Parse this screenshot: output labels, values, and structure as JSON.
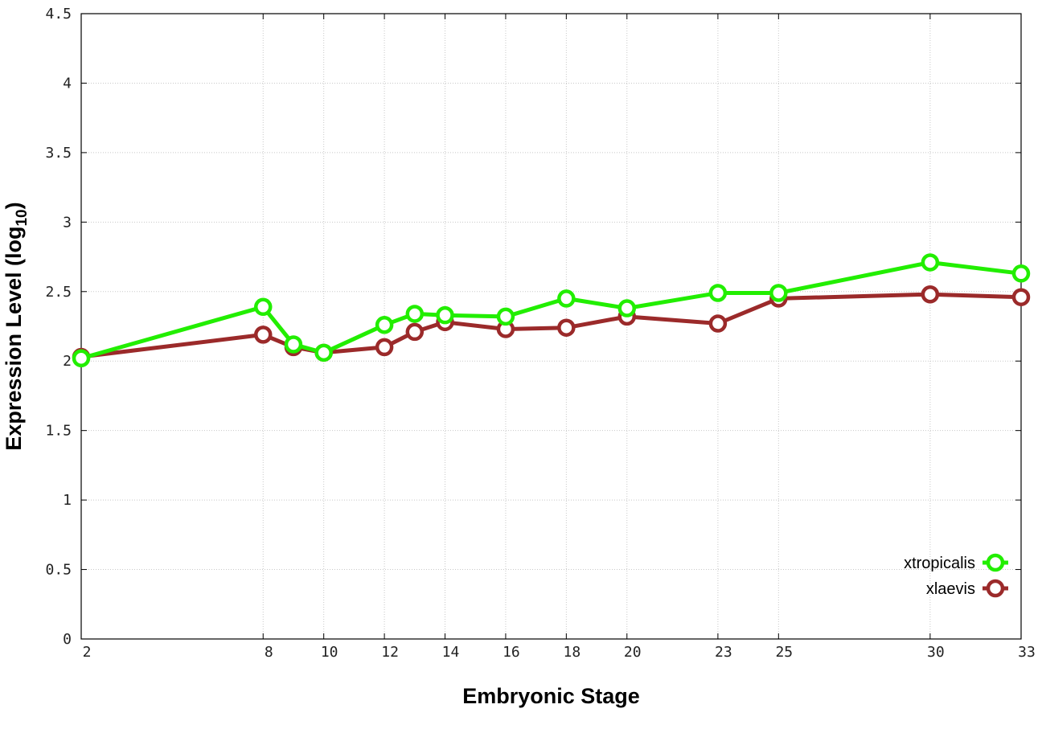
{
  "chart_data": {
    "type": "line",
    "xlabel": "Embryonic Stage",
    "ylabel": "Expression Level (log",
    "ylabel_subscript": "10",
    "ylabel_suffix": ")",
    "xlim": [
      2,
      33
    ],
    "ylim": [
      0,
      4.5
    ],
    "x_ticks": [
      2,
      8,
      10,
      12,
      14,
      16,
      18,
      20,
      23,
      25,
      30,
      33
    ],
    "x_tick_labels": [
      "2",
      "8",
      "10",
      "12",
      "14",
      "16",
      "18",
      "20",
      "23",
      "25",
      "30",
      "33"
    ],
    "y_ticks": [
      0,
      0.5,
      1,
      1.5,
      2,
      2.5,
      3,
      3.5,
      4,
      4.5
    ],
    "y_tick_labels": [
      "0",
      "0.5",
      "1",
      "1.5",
      "2",
      "2.5",
      "3",
      "3.5",
      "4",
      "4.5"
    ],
    "grid": true,
    "legend_position": "bottom-right",
    "series": [
      {
        "name": "xtropicalis",
        "color": "#22ee00",
        "marker": "circle",
        "x": [
          2,
          8,
          9,
          10,
          12,
          13,
          14,
          16,
          18,
          20,
          23,
          25,
          30,
          33
        ],
        "y": [
          2.02,
          2.39,
          2.12,
          2.06,
          2.26,
          2.34,
          2.33,
          2.32,
          2.45,
          2.38,
          2.49,
          2.49,
          2.71,
          2.63
        ]
      },
      {
        "name": "xlaevis",
        "color": "#9b2a2a",
        "marker": "circle",
        "x": [
          2,
          8,
          9,
          10,
          12,
          13,
          14,
          16,
          18,
          20,
          23,
          25,
          30,
          33
        ],
        "y": [
          2.03,
          2.19,
          2.1,
          2.06,
          2.1,
          2.21,
          2.28,
          2.23,
          2.24,
          2.32,
          2.27,
          2.45,
          2.48,
          2.46
        ]
      }
    ]
  }
}
